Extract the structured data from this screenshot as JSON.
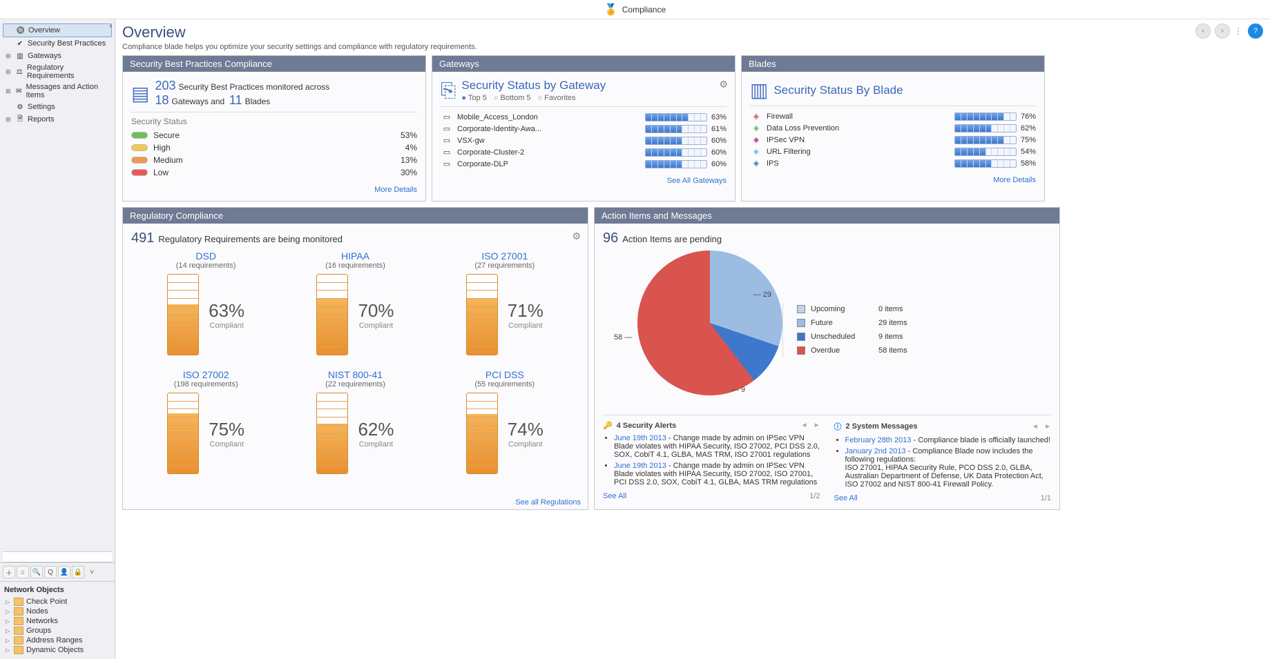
{
  "topbar": {
    "label": "Compliance"
  },
  "sidebar": {
    "nav": [
      {
        "label": "Overview",
        "icon": "🔘",
        "selected": true,
        "expand": false
      },
      {
        "label": "Security Best Practices",
        "icon": "✔",
        "expand": false
      },
      {
        "label": "Gateways",
        "icon": "▥",
        "expand": true
      },
      {
        "label": "Regulatory Requirements",
        "icon": "⚖",
        "expand": true
      },
      {
        "label": "Messages and Action Items",
        "icon": "✉",
        "expand": true
      },
      {
        "label": "Settings",
        "icon": "⚙",
        "expand": false
      },
      {
        "label": "Reports",
        "icon": "🗎",
        "expand": true
      }
    ],
    "network_objects_title": "Network Objects",
    "network_objects": [
      {
        "label": "Check Point"
      },
      {
        "label": "Nodes"
      },
      {
        "label": "Networks"
      },
      {
        "label": "Groups"
      },
      {
        "label": "Address Ranges"
      },
      {
        "label": "Dynamic Objects"
      }
    ]
  },
  "page": {
    "title": "Overview",
    "subtitle": "Compliance blade helps you optimize your security settings and compliance with regulatory requirements."
  },
  "sbp_panel": {
    "title": "Security Best Practices Compliance",
    "count_practices": "203",
    "count_practices_label": "Security Best Practices monitored across",
    "count_gateways": "18",
    "gateways_label": "Gateways and",
    "count_blades": "11",
    "blades_label": "Blades",
    "status_title": "Security Status",
    "statuses": [
      {
        "label": "Secure",
        "pct": "53%",
        "color": "#6ec05b"
      },
      {
        "label": "High",
        "pct": "4%",
        "color": "#f2c94c"
      },
      {
        "label": "Medium",
        "pct": "13%",
        "color": "#f2994a"
      },
      {
        "label": "Low",
        "pct": "30%",
        "color": "#eb5757"
      }
    ],
    "more": "More Details"
  },
  "gw_panel": {
    "title": "Gateways",
    "subtitle": "Security Status by Gateway",
    "radios": {
      "top": "Top 5",
      "bottom": "Bottom 5",
      "fav": "Favorites"
    },
    "rows": [
      {
        "name": "Mobile_Access_London",
        "pct": "63%",
        "fill": 7
      },
      {
        "name": "Corporate-Identity-Awa...",
        "pct": "61%",
        "fill": 6
      },
      {
        "name": "VSX-gw",
        "pct": "60%",
        "fill": 6
      },
      {
        "name": "Corporate-Cluster-2",
        "pct": "60%",
        "fill": 6
      },
      {
        "name": "Corporate-DLP",
        "pct": "60%",
        "fill": 6
      }
    ],
    "more": "See All Gateways"
  },
  "bl_panel": {
    "title": "Blades",
    "subtitle": "Security Status By Blade",
    "rows": [
      {
        "name": "Firewall",
        "pct": "76%",
        "fill": 8,
        "color": "#d9534f"
      },
      {
        "name": "Data Loss Prevention",
        "pct": "62%",
        "fill": 6,
        "color": "#5cb85c"
      },
      {
        "name": "IPSec VPN",
        "pct": "75%",
        "fill": 8,
        "color": "#b03060"
      },
      {
        "name": "URL Filtering",
        "pct": "54%",
        "fill": 5,
        "color": "#5bc0de"
      },
      {
        "name": "IPS",
        "pct": "58%",
        "fill": 6,
        "color": "#337ab7"
      }
    ],
    "more": "More Details"
  },
  "reg_panel": {
    "title": "Regulatory Compliance",
    "count": "491",
    "count_label": "Regulatory Requirements are being monitored",
    "items": [
      {
        "name": "DSD",
        "req": "(14 requirements)",
        "pct": "63%",
        "fill": 63
      },
      {
        "name": "HIPAA",
        "req": "(16 requirements)",
        "pct": "70%",
        "fill": 70
      },
      {
        "name": "ISO 27001",
        "req": "(27 requirements)",
        "pct": "71%",
        "fill": 71
      },
      {
        "name": "ISO 27002",
        "req": "(198 requirements)",
        "pct": "75%",
        "fill": 75
      },
      {
        "name": "NIST 800-41",
        "req": "(22 requirements)",
        "pct": "62%",
        "fill": 62
      },
      {
        "name": "PCI DSS",
        "req": "(55 requirements)",
        "pct": "74%",
        "fill": 74
      }
    ],
    "compliant": "Compliant",
    "see_all": "See all Regulations"
  },
  "action_panel": {
    "title": "Action Items and Messages",
    "count": "96",
    "count_label": "Action Items are pending",
    "legend": [
      {
        "label": "Upcoming",
        "count": "0 items",
        "color": "#bcd3ec"
      },
      {
        "label": "Future",
        "count": "29 items",
        "color": "#9cbce2"
      },
      {
        "label": "Unscheduled",
        "count": "9 items",
        "color": "#3d78cc"
      },
      {
        "label": "Overdue",
        "count": "58 items",
        "color": "#d9534f"
      }
    ],
    "slices": {
      "future": 29,
      "unscheduled": 9,
      "overdue": 58
    },
    "alerts": {
      "title": "4 Security Alerts",
      "items": [
        {
          "date": "June 19th 2013",
          "text": " - Change made by admin on IPSec VPN Blade violates with HIPAA Security, ISO 27002, PCI DSS 2.0, SOX, CobiT 4.1, GLBA, MAS TRM, ISO 27001 regulations"
        },
        {
          "date": "June 19th 2013",
          "text": " - Change made by admin on IPSec VPN Blade violates with HIPAA Security, ISO 27002, ISO 27001, PCI DSS 2.0, SOX, CobiT 4.1, GLBA, MAS TRM regulations"
        }
      ],
      "see_all": "See All",
      "page": "1/2"
    },
    "messages": {
      "title": "2 System Messages",
      "items": [
        {
          "date": "February 28th 2013",
          "text": " - Compliance blade is officially launched!"
        },
        {
          "date": "January 2nd 2013",
          "text": " - Compliance Blade now includes the following regulations:\nISO 27001, HIPAA Security Rule, PCO DSS 2.0, GLBA, Australian Department of Defense, UK Data Protection Act, ISO 27002 and NIST 800-41 Firewall Policy."
        }
      ],
      "see_all": "See All",
      "page": "1/1"
    }
  }
}
